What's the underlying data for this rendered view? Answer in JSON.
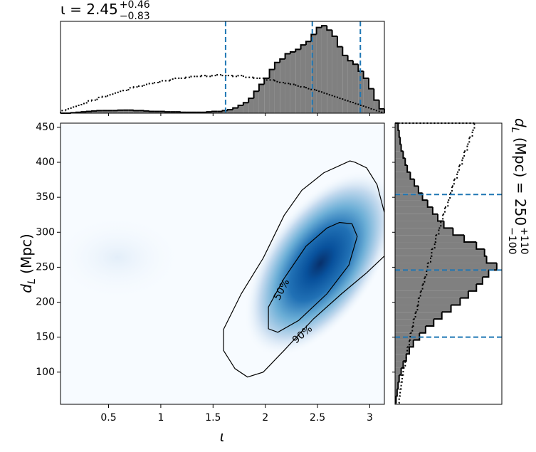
{
  "chart_data": [
    {
      "type": "contour",
      "xlabel": "ι",
      "ylabel": {
        "symbol": "d",
        "subscript": "L",
        "unit": " (Mpc)"
      },
      "xlim": [
        0.04,
        3.14
      ],
      "ylim": [
        54,
        456
      ],
      "xticks": [
        0.5,
        1.0,
        1.5,
        2.0,
        2.5,
        3.0
      ],
      "yticks": [
        100,
        150,
        200,
        250,
        300,
        350,
        400,
        450
      ],
      "contours": [
        {
          "label": "90%",
          "color": "#000000",
          "x": [
            2.81,
            2.56,
            2.35,
            2.18,
            1.98,
            1.77,
            1.6,
            1.6,
            1.71,
            1.83,
            1.98,
            2.18,
            2.46,
            2.73,
            2.97,
            3.14,
            3.14,
            3.07,
            2.97,
            2.86
          ],
          "y": [
            402,
            385,
            360,
            324,
            263,
            212,
            161,
            131,
            105,
            93,
            100,
            131,
            176,
            212,
            242,
            266,
            328,
            368,
            392,
            400
          ]
        },
        {
          "label": "50%",
          "color": "#000000",
          "x": [
            2.71,
            2.59,
            2.39,
            2.18,
            2.03,
            2.03,
            2.12,
            2.32,
            2.59,
            2.8,
            2.88,
            2.83
          ],
          "y": [
            314,
            306,
            280,
            234,
            193,
            162,
            157,
            174,
            212,
            253,
            294,
            312
          ]
        }
      ]
    },
    {
      "type": "histogram",
      "orientation": "vertical",
      "title": {
        "text": "ι = 2.45",
        "plus": "+0.46",
        "minus": "−0.83"
      },
      "xlim": [
        0.04,
        3.14
      ],
      "ylim": [
        0,
        105
      ],
      "xticks": [
        0.5,
        1.0,
        1.5,
        2.0,
        2.5,
        3.0
      ],
      "quantiles": [
        1.62,
        2.45,
        2.91
      ],
      "quantile_color": "#1f77b4",
      "bins": [
        0.04,
        0.09,
        0.14,
        0.19,
        0.24,
        0.29,
        0.34,
        0.39,
        0.44,
        0.49,
        0.54,
        0.59,
        0.64,
        0.69,
        0.74,
        0.79,
        0.84,
        0.89,
        0.94,
        0.99,
        1.04,
        1.09,
        1.14,
        1.19,
        1.24,
        1.29,
        1.34,
        1.39,
        1.44,
        1.49,
        1.54,
        1.59,
        1.64,
        1.69,
        1.74,
        1.79,
        1.84,
        1.89,
        1.94,
        1.99,
        2.04,
        2.09,
        2.14,
        2.19,
        2.24,
        2.29,
        2.34,
        2.39,
        2.44,
        2.49,
        2.54,
        2.59,
        2.64,
        2.69,
        2.74,
        2.79,
        2.84,
        2.89,
        2.94,
        2.99,
        3.04,
        3.09,
        3.14
      ],
      "series": [
        {
          "style": "filled",
          "color": "#808080",
          "values": [
            0,
            0,
            0.5,
            1,
            1.5,
            2,
            2.5,
            3,
            3,
            3,
            3,
            3.5,
            3.5,
            3.5,
            3,
            3,
            2.5,
            2,
            2,
            2,
            1.5,
            1.5,
            1.5,
            1,
            1,
            1,
            1,
            1,
            1.5,
            2,
            2,
            3,
            4,
            6,
            9,
            12,
            17,
            25,
            33,
            40,
            50,
            58,
            62,
            68,
            70,
            73,
            78,
            82,
            90,
            98,
            100,
            95,
            88,
            76,
            66,
            60,
            56,
            48,
            40,
            28,
            15,
            5
          ]
        },
        {
          "style": "dotted",
          "color": "#000000",
          "values": [
            3,
            5,
            7,
            9,
            11,
            14,
            15,
            18,
            19,
            21,
            23,
            25,
            26,
            29,
            30,
            31,
            33,
            34,
            35,
            37,
            37,
            39,
            40,
            40,
            41,
            42,
            42,
            43,
            42,
            43,
            44,
            43,
            43,
            42,
            43,
            41,
            41,
            40,
            40,
            38,
            38,
            36,
            35,
            34,
            33,
            31,
            30,
            28,
            27,
            25,
            23,
            21,
            19,
            17,
            15,
            13,
            11,
            9,
            7,
            5,
            3,
            1
          ]
        }
      ]
    },
    {
      "type": "histogram",
      "orientation": "horizontal",
      "label": {
        "symbol": "d",
        "subscript": "L",
        "text": " (Mpc) = 250",
        "plus": "+110",
        "minus": "−100"
      },
      "xlim": [
        0,
        105
      ],
      "ylim": [
        54,
        456
      ],
      "yticks": [
        100,
        150,
        200,
        250,
        300,
        350,
        400,
        450
      ],
      "quantiles": [
        150,
        246,
        354
      ],
      "quantile_color": "#1f77b4",
      "bins": [
        56,
        66,
        76,
        86,
        96,
        106,
        116,
        126,
        136,
        146,
        156,
        166,
        176,
        186,
        196,
        206,
        216,
        226,
        236,
        246,
        256,
        266,
        276,
        286,
        296,
        306,
        316,
        326,
        336,
        346,
        356,
        366,
        376,
        386,
        396,
        406,
        416,
        426,
        436,
        446,
        456
      ],
      "series": [
        {
          "style": "filled",
          "color": "#808080",
          "values": [
            1,
            2,
            3,
            4,
            6,
            8,
            11,
            14,
            18,
            24,
            30,
            38,
            46,
            55,
            64,
            72,
            80,
            86,
            92,
            100,
            90,
            88,
            80,
            68,
            57,
            48,
            42,
            37,
            32,
            27,
            23,
            19,
            15,
            12,
            10,
            8,
            6,
            5,
            4,
            3
          ]
        },
        {
          "style": "dotted",
          "color": "#000000",
          "values": [
            4,
            5,
            6,
            7,
            8,
            10,
            11,
            12,
            14,
            15,
            17,
            18,
            20,
            22,
            23,
            25,
            27,
            29,
            31,
            32,
            35,
            36,
            39,
            40,
            43,
            45,
            47,
            49,
            52,
            54,
            56,
            58,
            61,
            63,
            66,
            68,
            71,
            73,
            76,
            78
          ]
        }
      ]
    }
  ]
}
